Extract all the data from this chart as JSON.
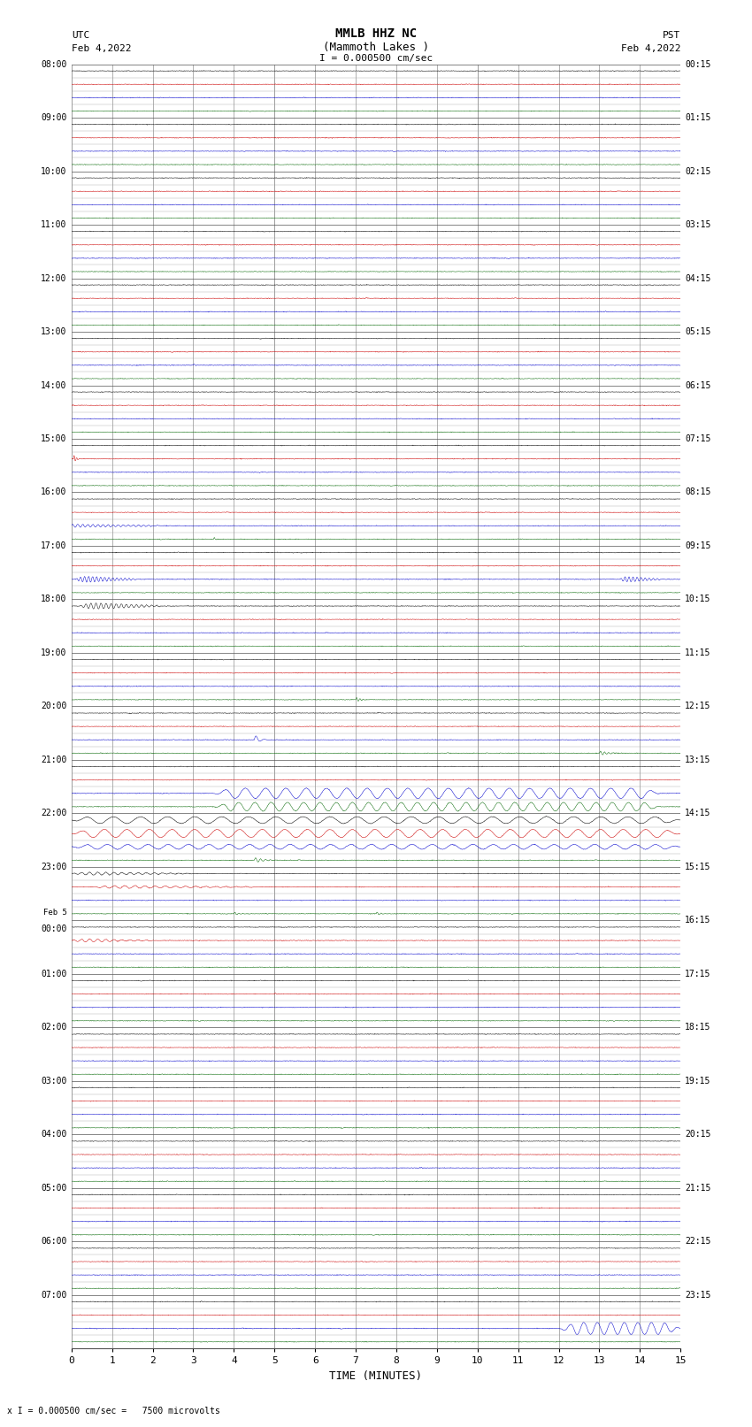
{
  "title_line1": "MMLB HHZ NC",
  "title_line2": "(Mammoth Lakes )",
  "scale_label": "I = 0.000500 cm/sec",
  "left_label_top": "UTC",
  "left_label_date": "Feb 4,2022",
  "right_label_top": "PST",
  "right_label_date": "Feb 4,2022",
  "bottom_label": "TIME (MINUTES)",
  "caption": "x I = 0.000500 cm/sec =   7500 microvolts",
  "hour_labels_left": [
    "08:00",
    "09:00",
    "10:00",
    "11:00",
    "12:00",
    "13:00",
    "14:00",
    "15:00",
    "16:00",
    "17:00",
    "18:00",
    "19:00",
    "20:00",
    "21:00",
    "22:00",
    "23:00",
    "Feb 5\n00:00",
    "01:00",
    "02:00",
    "03:00",
    "04:00",
    "05:00",
    "06:00",
    "07:00"
  ],
  "hour_labels_right": [
    "00:15",
    "01:15",
    "02:15",
    "03:15",
    "04:15",
    "05:15",
    "06:15",
    "07:15",
    "08:15",
    "09:15",
    "10:15",
    "11:15",
    "12:15",
    "13:15",
    "14:15",
    "15:15",
    "16:15",
    "17:15",
    "18:15",
    "19:15",
    "20:15",
    "21:15",
    "22:15",
    "23:15"
  ],
  "n_hours": 24,
  "n_minutes": 15,
  "background_color": "#ffffff",
  "trace_colors": [
    "#000000",
    "#cc0000",
    "#0000cc",
    "#006600"
  ],
  "fig_width": 8.5,
  "fig_height": 16.13,
  "dpi": 100
}
